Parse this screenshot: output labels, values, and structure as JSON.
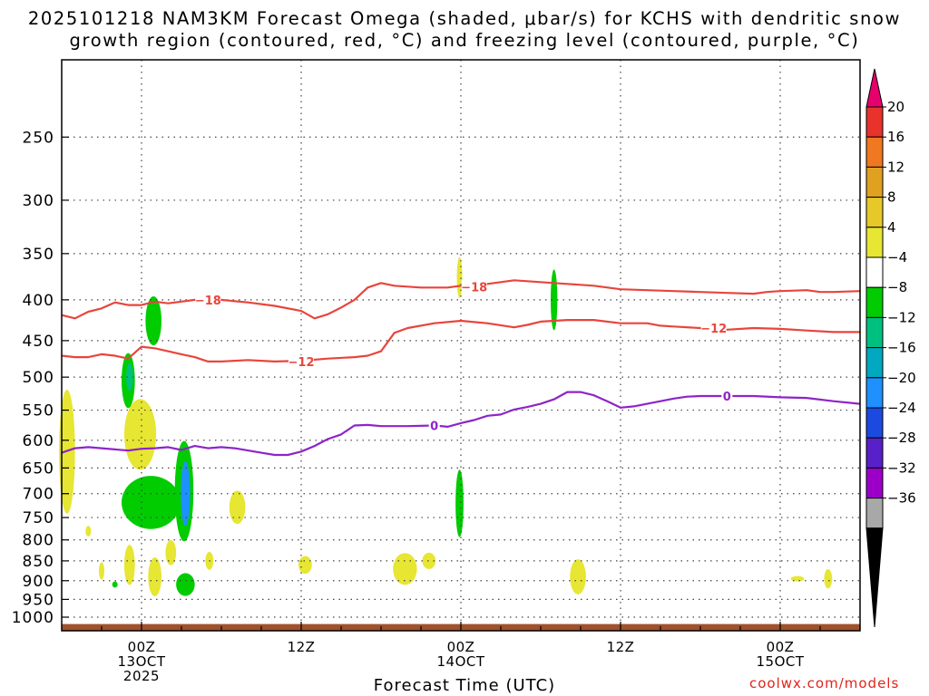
{
  "chart_data": {
    "type": "heatmap",
    "title_line1": "2025101218 NAM3KM Forecast Omega (shaded, μbar/s) for KCHS with dendritic snow",
    "title_line2": "growth region (contoured, red, °C) and freezing level (contoured, purple, °C)",
    "xlabel": "Forecast Time (UTC)",
    "watermark": "coolwx.com/models",
    "y_axis": {
      "scale": "log-pressure",
      "reversed": true,
      "range_hpa": [
        1040,
        200
      ],
      "ticks": [
        250,
        300,
        350,
        400,
        450,
        500,
        550,
        600,
        650,
        700,
        750,
        800,
        850,
        900,
        950,
        1000
      ]
    },
    "x_axis": {
      "range_hours": [
        0,
        60
      ],
      "major_ticks": [
        {
          "hour": 6,
          "lines": [
            "00Z",
            "13OCT",
            "2025"
          ]
        },
        {
          "hour": 18,
          "lines": [
            "12Z"
          ]
        },
        {
          "hour": 30,
          "lines": [
            "00Z",
            "14OCT"
          ]
        },
        {
          "hour": 42,
          "lines": [
            "12Z"
          ]
        },
        {
          "hour": 54,
          "lines": [
            "00Z",
            "15OCT"
          ]
        }
      ]
    },
    "grid": true,
    "colorbar": {
      "labels": [
        "20",
        "16",
        "12",
        "8",
        "4",
        "−4",
        "−8",
        "−12",
        "−16",
        "−20",
        "−24",
        "−28",
        "−32",
        "−36"
      ],
      "colors": [
        "#e6006e",
        "#e8322c",
        "#f07820",
        "#e0a020",
        "#e6c828",
        "#e6e633",
        "#ffffff",
        "#00cc00",
        "#00c080",
        "#00a8c0",
        "#1e90ff",
        "#1c4ae0",
        "#5820c8",
        "#9c00c8",
        "#a8a8a8",
        "#000000"
      ]
    },
    "contours": [
      {
        "field": "temperature",
        "value": -18,
        "label": "−18",
        "color": "#e8453c",
        "points": [
          [
            0,
            418
          ],
          [
            1,
            422
          ],
          [
            2,
            414
          ],
          [
            3,
            410
          ],
          [
            4,
            403
          ],
          [
            5,
            406
          ],
          [
            6,
            406
          ],
          [
            7,
            402
          ],
          [
            8,
            404
          ],
          [
            10,
            400
          ],
          [
            12,
            400
          ],
          [
            14,
            403
          ],
          [
            16,
            407
          ],
          [
            18,
            413
          ],
          [
            19,
            422
          ],
          [
            20,
            417
          ],
          [
            21,
            409
          ],
          [
            22,
            400
          ],
          [
            23,
            386
          ],
          [
            24,
            381
          ],
          [
            25,
            384
          ],
          [
            27,
            386
          ],
          [
            29,
            386
          ],
          [
            30,
            384
          ],
          [
            32,
            382
          ],
          [
            34,
            378
          ],
          [
            36,
            380
          ],
          [
            38,
            382
          ],
          [
            40,
            384
          ],
          [
            42,
            388
          ],
          [
            44,
            389
          ],
          [
            46,
            390
          ],
          [
            48,
            391
          ],
          [
            50,
            392
          ],
          [
            52,
            393
          ],
          [
            53,
            391
          ],
          [
            54,
            390
          ],
          [
            56,
            389
          ],
          [
            57,
            391
          ],
          [
            58,
            391
          ],
          [
            60,
            390
          ]
        ],
        "label_positions": [
          [
            11,
            400
          ],
          [
            31,
            385
          ]
        ]
      },
      {
        "field": "temperature",
        "value": -12,
        "label": "−12",
        "color": "#e8453c",
        "points": [
          [
            0,
            470
          ],
          [
            1,
            472
          ],
          [
            2,
            472
          ],
          [
            3,
            468
          ],
          [
            4,
            470
          ],
          [
            5,
            474
          ],
          [
            6,
            458
          ],
          [
            7,
            460
          ],
          [
            8,
            464
          ],
          [
            9,
            468
          ],
          [
            10,
            472
          ],
          [
            11,
            478
          ],
          [
            12,
            478
          ],
          [
            14,
            476
          ],
          [
            16,
            478
          ],
          [
            18,
            477
          ],
          [
            20,
            474
          ],
          [
            22,
            472
          ],
          [
            23,
            470
          ],
          [
            24,
            464
          ],
          [
            25,
            440
          ],
          [
            26,
            434
          ],
          [
            28,
            428
          ],
          [
            30,
            425
          ],
          [
            32,
            428
          ],
          [
            34,
            433
          ],
          [
            35,
            430
          ],
          [
            36,
            426
          ],
          [
            38,
            424
          ],
          [
            40,
            424
          ],
          [
            42,
            428
          ],
          [
            44,
            428
          ],
          [
            45,
            431
          ],
          [
            46,
            432
          ],
          [
            48,
            434
          ],
          [
            50,
            436
          ],
          [
            52,
            434
          ],
          [
            54,
            435
          ],
          [
            56,
            437
          ],
          [
            58,
            439
          ],
          [
            60,
            439
          ]
        ],
        "label_positions": [
          [
            18,
            478
          ],
          [
            49,
            434
          ]
        ]
      },
      {
        "field": "temperature",
        "value": 0,
        "label": "0",
        "color": "#8e24c8",
        "points": [
          [
            0,
            622
          ],
          [
            1,
            614
          ],
          [
            2,
            612
          ],
          [
            3,
            614
          ],
          [
            4,
            616
          ],
          [
            5,
            618
          ],
          [
            6,
            615
          ],
          [
            7,
            614
          ],
          [
            8,
            612
          ],
          [
            9,
            617
          ],
          [
            10,
            610
          ],
          [
            11,
            614
          ],
          [
            12,
            612
          ],
          [
            13,
            614
          ],
          [
            14,
            618
          ],
          [
            15,
            622
          ],
          [
            16,
            626
          ],
          [
            17,
            626
          ],
          [
            18,
            620
          ],
          [
            19,
            610
          ],
          [
            20,
            598
          ],
          [
            21,
            590
          ],
          [
            22,
            575
          ],
          [
            23,
            574
          ],
          [
            24,
            576
          ],
          [
            26,
            576
          ],
          [
            28,
            575
          ],
          [
            29,
            577
          ],
          [
            30,
            571
          ],
          [
            31,
            566
          ],
          [
            32,
            559
          ],
          [
            33,
            557
          ],
          [
            34,
            549
          ],
          [
            35,
            545
          ],
          [
            36,
            540
          ],
          [
            37,
            533
          ],
          [
            38,
            522
          ],
          [
            39,
            522
          ],
          [
            40,
            527
          ],
          [
            41,
            536
          ],
          [
            42,
            546
          ],
          [
            43,
            544
          ],
          [
            44,
            540
          ],
          [
            45,
            536
          ],
          [
            46,
            532
          ],
          [
            47,
            529
          ],
          [
            48,
            528
          ],
          [
            50,
            528
          ],
          [
            52,
            528
          ],
          [
            54,
            530
          ],
          [
            56,
            531
          ],
          [
            58,
            536
          ],
          [
            60,
            540
          ]
        ],
        "label_positions": [
          [
            28,
            575
          ],
          [
            50,
            528
          ]
        ]
      }
    ],
    "omega_blobs": [
      {
        "hour": 0.4,
        "p": 620,
        "dh": 0.6,
        "dp": 110,
        "color": "#e6e633"
      },
      {
        "hour": 2.0,
        "p": 780,
        "dh": 0.2,
        "dp": 12,
        "color": "#e6e633"
      },
      {
        "hour": 3.0,
        "p": 875,
        "dh": 0.2,
        "dp": 22,
        "color": "#e6e633"
      },
      {
        "hour": 4.0,
        "p": 910,
        "dh": 0.2,
        "dp": 8,
        "color": "#00cc00"
      },
      {
        "hour": 5.1,
        "p": 860,
        "dh": 0.4,
        "dp": 50,
        "color": "#e6e633"
      },
      {
        "hour": 5.9,
        "p": 590,
        "dh": 1.2,
        "dp": 60,
        "color": "#e6e633"
      },
      {
        "hour": 5.0,
        "p": 505,
        "dh": 0.5,
        "dp": 40,
        "color": "#00cc00"
      },
      {
        "hour": 5.1,
        "p": 500,
        "dh": 0.25,
        "dp": 20,
        "color": "#00c080"
      },
      {
        "hour": 6.9,
        "p": 425,
        "dh": 0.6,
        "dp": 30,
        "color": "#00cc00"
      },
      {
        "hour": 6.7,
        "p": 718,
        "dh": 2.2,
        "dp": 55,
        "color": "#00cc00"
      },
      {
        "hour": 7.0,
        "p": 890,
        "dh": 0.5,
        "dp": 50,
        "color": "#e6e633"
      },
      {
        "hour": 8.2,
        "p": 830,
        "dh": 0.4,
        "dp": 30,
        "color": "#e6e633"
      },
      {
        "hour": 9.2,
        "p": 695,
        "dh": 0.7,
        "dp": 100,
        "color": "#00cc00"
      },
      {
        "hour": 9.3,
        "p": 700,
        "dh": 0.35,
        "dp": 65,
        "color": "#1e90ff"
      },
      {
        "hour": 9.3,
        "p": 910,
        "dh": 0.7,
        "dp": 30,
        "color": "#00cc00"
      },
      {
        "hour": 11.1,
        "p": 850,
        "dh": 0.3,
        "dp": 22,
        "color": "#e6e633"
      },
      {
        "hour": 13.2,
        "p": 728,
        "dh": 0.6,
        "dp": 35,
        "color": "#e6e633"
      },
      {
        "hour": 18.3,
        "p": 860,
        "dh": 0.5,
        "dp": 22,
        "color": "#e6e633"
      },
      {
        "hour": 25.8,
        "p": 870,
        "dh": 0.9,
        "dp": 40,
        "color": "#e6e633"
      },
      {
        "hour": 27.6,
        "p": 850,
        "dh": 0.5,
        "dp": 20,
        "color": "#e6e633"
      },
      {
        "hour": 29.9,
        "p": 720,
        "dh": 0.3,
        "dp": 70,
        "color": "#00cc00"
      },
      {
        "hour": 29.9,
        "p": 375,
        "dh": 0.15,
        "dp": 22,
        "color": "#e6e633"
      },
      {
        "hour": 37.0,
        "p": 400,
        "dh": 0.25,
        "dp": 35,
        "color": "#00cc00"
      },
      {
        "hour": 38.8,
        "p": 890,
        "dh": 0.6,
        "dp": 45,
        "color": "#e6e633"
      },
      {
        "hour": 55.3,
        "p": 895,
        "dh": 0.5,
        "dp": 6,
        "color": "#e6e633"
      },
      {
        "hour": 57.6,
        "p": 895,
        "dh": 0.3,
        "dp": 25,
        "color": "#e6e633"
      }
    ],
    "terrain_color": "#a0522d"
  }
}
